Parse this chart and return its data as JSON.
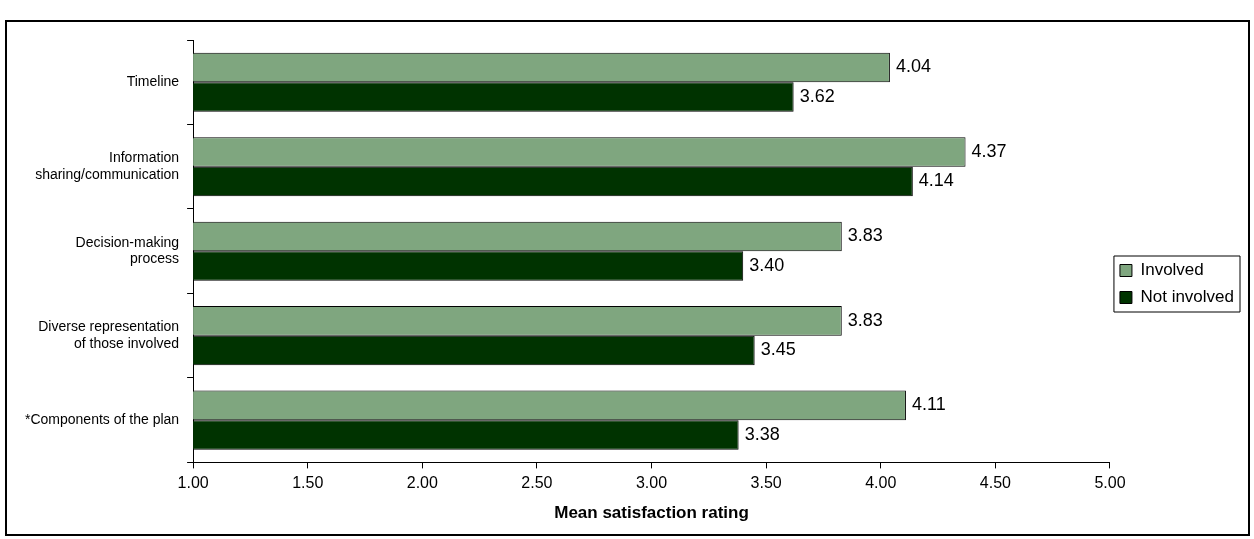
{
  "chart_data": {
    "type": "bar",
    "orientation": "horizontal",
    "xlabel": "Mean satisfaction rating",
    "categories": [
      "Timeline",
      "Information\nsharing/communication",
      "Decision-making\nprocess",
      "Diverse representation\nof those involved",
      "*Components of the plan"
    ],
    "series": [
      {
        "name": "Involved",
        "color": "#7fa67f",
        "values": [
          4.04,
          4.37,
          3.83,
          3.83,
          4.11
        ],
        "value_labels": [
          "4.04",
          "4.37",
          "3.83",
          "3.83",
          "4.11"
        ]
      },
      {
        "name": "Not involved",
        "color": "#003300",
        "values": [
          3.62,
          4.14,
          3.4,
          3.45,
          3.38
        ],
        "value_labels": [
          "3.62",
          "4.14",
          "3.40",
          "3.45",
          "3.38"
        ]
      }
    ],
    "xlim": [
      1,
      5
    ],
    "xticks": [
      {
        "value": 1,
        "label": "1.00"
      },
      {
        "value": 1.5,
        "label": "1.50"
      },
      {
        "value": 2,
        "label": "2.00"
      },
      {
        "value": 2.5,
        "label": "2.50"
      },
      {
        "value": 3,
        "label": "3.00"
      },
      {
        "value": 3.5,
        "label": "3.50"
      },
      {
        "value": 4,
        "label": "4.00"
      },
      {
        "value": 4.5,
        "label": "4.50"
      },
      {
        "value": 5,
        "label": "5.00"
      }
    ],
    "grid": false,
    "legend": "right"
  }
}
